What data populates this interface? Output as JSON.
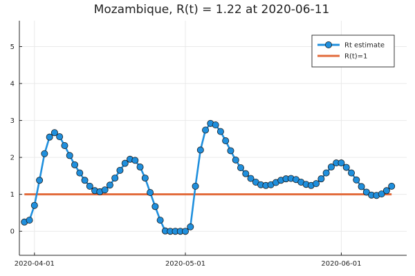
{
  "chart_data": {
    "type": "line",
    "title": "Mozambique, R(t) = 1.22 at 2020-06-11",
    "xlabel": "",
    "ylabel": "",
    "x_range": [
      "2020-03-29",
      "2020-06-14"
    ],
    "ylim": [
      -0.65,
      5.7
    ],
    "x_ticks": [
      "2020-04-01",
      "2020-05-01",
      "2020-06-01"
    ],
    "x_tick_labels": [
      "2020-04-01",
      "2020-05-01",
      "2020-06-01"
    ],
    "y_ticks": [
      0,
      1,
      2,
      3,
      4,
      5
    ],
    "y_tick_labels": [
      "0",
      "1",
      "2",
      "3",
      "4",
      "5"
    ],
    "grid": true,
    "legend_position": "top-right",
    "series": [
      {
        "name": "Rt estimate",
        "color": "#1f8fdd",
        "marker": "circle",
        "x": [
          "2020-03-30",
          "2020-03-31",
          "2020-04-01",
          "2020-04-02",
          "2020-04-03",
          "2020-04-04",
          "2020-04-05",
          "2020-04-06",
          "2020-04-07",
          "2020-04-08",
          "2020-04-09",
          "2020-04-10",
          "2020-04-11",
          "2020-04-12",
          "2020-04-13",
          "2020-04-14",
          "2020-04-15",
          "2020-04-16",
          "2020-04-17",
          "2020-04-18",
          "2020-04-19",
          "2020-04-20",
          "2020-04-21",
          "2020-04-22",
          "2020-04-23",
          "2020-04-24",
          "2020-04-25",
          "2020-04-26",
          "2020-04-27",
          "2020-04-28",
          "2020-04-29",
          "2020-04-30",
          "2020-05-01",
          "2020-05-02",
          "2020-05-03",
          "2020-05-04",
          "2020-05-05",
          "2020-05-06",
          "2020-05-07",
          "2020-05-08",
          "2020-05-09",
          "2020-05-10",
          "2020-05-11",
          "2020-05-12",
          "2020-05-13",
          "2020-05-14",
          "2020-05-15",
          "2020-05-16",
          "2020-05-17",
          "2020-05-18",
          "2020-05-19",
          "2020-05-20",
          "2020-05-21",
          "2020-05-22",
          "2020-05-23",
          "2020-05-24",
          "2020-05-25",
          "2020-05-26",
          "2020-05-27",
          "2020-05-28",
          "2020-05-29",
          "2020-05-30",
          "2020-05-31",
          "2020-06-01",
          "2020-06-02",
          "2020-06-03",
          "2020-06-04",
          "2020-06-05",
          "2020-06-06",
          "2020-06-07",
          "2020-06-08",
          "2020-06-09",
          "2020-06-10",
          "2020-06-11"
        ],
        "y": [
          0.25,
          0.3,
          0.7,
          1.38,
          2.1,
          2.55,
          2.67,
          2.56,
          2.32,
          2.05,
          1.8,
          1.58,
          1.38,
          1.22,
          1.1,
          1.07,
          1.12,
          1.25,
          1.44,
          1.65,
          1.84,
          1.95,
          1.92,
          1.74,
          1.44,
          1.05,
          0.67,
          0.3,
          0.01,
          0.0,
          0.0,
          0.0,
          0.0,
          0.12,
          1.22,
          2.2,
          2.74,
          2.92,
          2.88,
          2.7,
          2.45,
          2.18,
          1.93,
          1.72,
          1.56,
          1.43,
          1.33,
          1.26,
          1.24,
          1.26,
          1.32,
          1.38,
          1.42,
          1.43,
          1.4,
          1.33,
          1.27,
          1.24,
          1.29,
          1.42,
          1.58,
          1.74,
          1.85,
          1.85,
          1.73,
          1.58,
          1.39,
          1.21,
          1.06,
          0.98,
          0.97,
          1.01,
          1.1,
          1.22
        ]
      },
      {
        "name": "R(t)=1",
        "color": "#e26a3a",
        "marker": "none",
        "x": [
          "2020-03-30",
          "2020-06-11"
        ],
        "y": [
          1,
          1
        ]
      }
    ]
  }
}
